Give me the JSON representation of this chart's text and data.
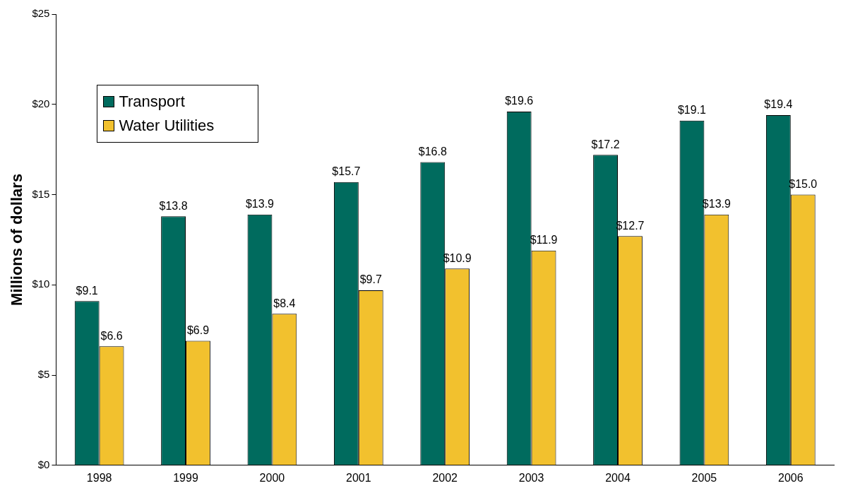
{
  "chart_data": {
    "type": "bar",
    "ylabel": "Millions of dollars",
    "categories": [
      "1998",
      "1999",
      "2000",
      "2001",
      "2002",
      "2003",
      "2004",
      "2005",
      "2006"
    ],
    "series": [
      {
        "name": "Transport",
        "color": "#006b5e",
        "values": [
          9.1,
          13.8,
          13.9,
          15.7,
          16.8,
          19.6,
          17.2,
          19.1,
          19.4
        ],
        "value_labels": [
          "$9.1",
          "$13.8",
          "$13.9",
          "$15.7",
          "$16.8",
          "$19.6",
          "$17.2",
          "$19.1",
          "$19.4"
        ]
      },
      {
        "name": "Water Utilities",
        "color": "#f2c12e",
        "values": [
          6.6,
          6.9,
          8.4,
          9.7,
          10.9,
          11.9,
          12.7,
          13.9,
          15.0
        ],
        "value_labels": [
          "$6.6",
          "$6.9",
          "$8.4",
          "$9.7",
          "$10.9",
          "$11.9",
          "$12.7",
          "$13.9",
          "$15.0"
        ]
      }
    ],
    "ylim": [
      0,
      25
    ],
    "yticks": [
      {
        "value": 0,
        "label": "$0"
      },
      {
        "value": 5,
        "label": "$5"
      },
      {
        "value": 10,
        "label": "$10"
      },
      {
        "value": 15,
        "label": "$15"
      },
      {
        "value": 20,
        "label": "$20"
      },
      {
        "value": 25,
        "label": "$25"
      }
    ],
    "grid": false,
    "legend": "top left"
  }
}
